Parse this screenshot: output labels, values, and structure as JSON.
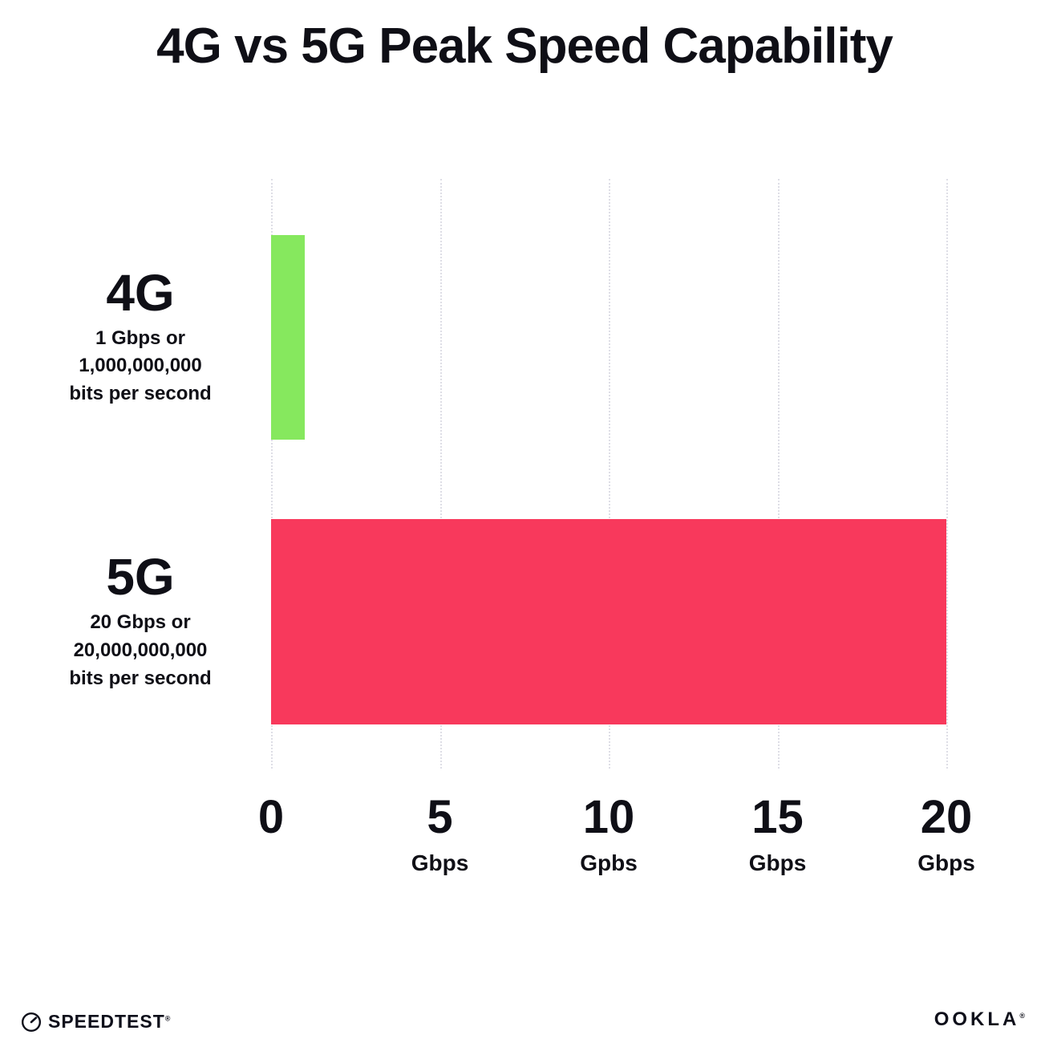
{
  "title": "4G vs 5G Peak Speed Capability",
  "chart_data": {
    "type": "bar",
    "orientation": "horizontal",
    "title": "4G vs 5G Peak Speed Capability",
    "categories": [
      "4G",
      "5G"
    ],
    "values": [
      1,
      20
    ],
    "bar_colors": [
      "#86E85E",
      "#F8395C"
    ],
    "row_sublabels": [
      [
        "1 Gbps or",
        "1,000,000,000",
        "bits per second"
      ],
      [
        "20 Gbps or",
        "20,000,000,000",
        "bits per second"
      ]
    ],
    "x_ticks": [
      {
        "value": 0,
        "label": "0",
        "unit": ""
      },
      {
        "value": 5,
        "label": "5",
        "unit": "Gbps"
      },
      {
        "value": 10,
        "label": "10",
        "unit": "Gpbs"
      },
      {
        "value": 15,
        "label": "15",
        "unit": "Gbps"
      },
      {
        "value": 20,
        "label": "20",
        "unit": "Gbps"
      }
    ],
    "xlim": [
      0,
      20
    ],
    "grid": "dotted-vertical",
    "legend": "none"
  },
  "footer": {
    "speedtest_label": "SPEEDTEST",
    "speedtest_mark": "®",
    "ookla_label": "OOKLA",
    "ookla_mark": "®"
  }
}
